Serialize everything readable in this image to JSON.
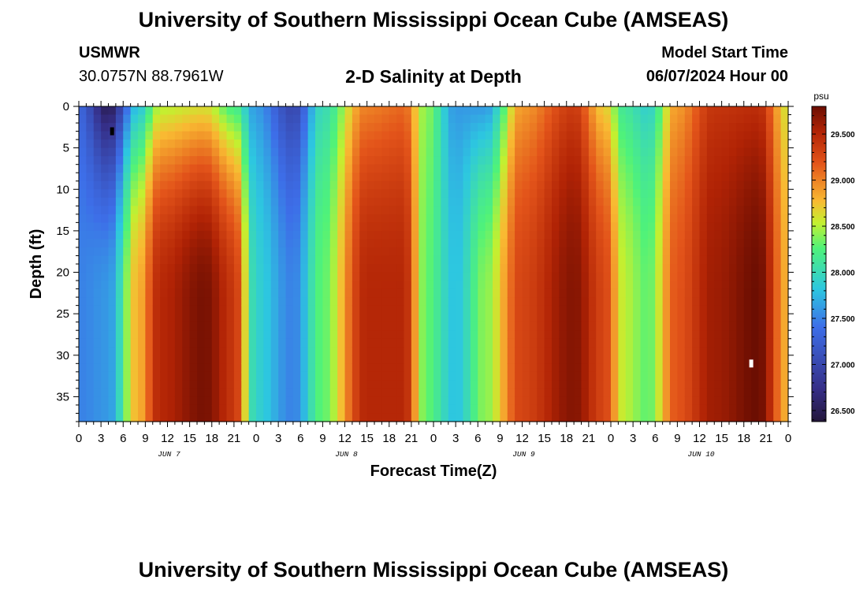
{
  "header": {
    "title": "University of Southern Mississippi Ocean Cube (AMSEAS)",
    "station_name": "USMWR",
    "coords": "30.0757N  88.7961W",
    "plot_title": "2-D Salinity at Depth",
    "model_start_label": "Model Start Time",
    "model_start_value": "06/07/2024 Hour 00"
  },
  "footer": {
    "title": "University of Southern Mississippi Ocean Cube (AMSEAS)"
  },
  "chart_data": {
    "type": "heatmap",
    "title": "2-D Salinity at Depth",
    "xlabel": "Forecast Time(Z)",
    "ylabel": "Depth (ft)",
    "x_hours_range": [
      0,
      96
    ],
    "x_tick_labels": [
      "0",
      "3",
      "6",
      "9",
      "12",
      "15",
      "18",
      "21",
      "0",
      "3",
      "6",
      "9",
      "12",
      "15",
      "18",
      "21",
      "0",
      "3",
      "6",
      "9",
      "12",
      "15",
      "18",
      "21",
      "0",
      "3",
      "6",
      "9",
      "12",
      "15",
      "18",
      "21",
      "0"
    ],
    "day_labels": [
      "JUN 7",
      "JUN 8",
      "JUN 9",
      "JUN 10"
    ],
    "ylim": [
      0,
      38
    ],
    "y_ticks": [
      0,
      5,
      10,
      15,
      20,
      25,
      30,
      35
    ],
    "colorbar": {
      "unit": "psu",
      "range": [
        26.38,
        29.8
      ],
      "ticks": [
        26.5,
        27.0,
        27.5,
        28.0,
        28.5,
        29.0,
        29.5
      ],
      "tick_labels": [
        "26.500",
        "27.000",
        "27.500",
        "28.000",
        "28.500",
        "29.000",
        "29.500"
      ]
    },
    "salinity_profile": [
      {
        "hour": 0,
        "surface": 27.3,
        "bottom": 27.5
      },
      {
        "hour": 4,
        "surface": 26.5,
        "bottom": 27.6
      },
      {
        "hour": 8,
        "surface": 27.8,
        "bottom": 28.8
      },
      {
        "hour": 11,
        "surface": 28.5,
        "bottom": 29.5
      },
      {
        "hour": 17,
        "surface": 28.6,
        "bottom": 29.75
      },
      {
        "hour": 21,
        "surface": 28.2,
        "bottom": 29.4
      },
      {
        "hour": 24,
        "surface": 27.6,
        "bottom": 27.9
      },
      {
        "hour": 29,
        "surface": 27.0,
        "bottom": 27.5
      },
      {
        "hour": 33,
        "surface": 28.0,
        "bottom": 28.3
      },
      {
        "hour": 39,
        "surface": 29.0,
        "bottom": 29.5
      },
      {
        "hour": 44,
        "surface": 29.1,
        "bottom": 29.5
      },
      {
        "hour": 47,
        "surface": 28.4,
        "bottom": 28.3
      },
      {
        "hour": 51,
        "surface": 27.6,
        "bottom": 27.8
      },
      {
        "hour": 55,
        "surface": 27.6,
        "bottom": 28.4
      },
      {
        "hour": 60,
        "surface": 28.9,
        "bottom": 29.3
      },
      {
        "hour": 67,
        "surface": 29.35,
        "bottom": 29.7
      },
      {
        "hour": 71,
        "surface": 28.7,
        "bottom": 29.3
      },
      {
        "hour": 74,
        "surface": 28.1,
        "bottom": 28.5
      },
      {
        "hour": 77,
        "surface": 27.9,
        "bottom": 28.3
      },
      {
        "hour": 81,
        "surface": 28.9,
        "bottom": 29.2
      },
      {
        "hour": 86,
        "surface": 29.4,
        "bottom": 29.6
      },
      {
        "hour": 92,
        "surface": 29.45,
        "bottom": 29.8
      },
      {
        "hour": 96,
        "surface": 28.6,
        "bottom": 28.8
      }
    ],
    "markers": [
      {
        "hour": 4.5,
        "depth": 3,
        "color": "#000000"
      },
      {
        "hour": 91,
        "depth": 31,
        "color": "#ffffff"
      }
    ]
  }
}
